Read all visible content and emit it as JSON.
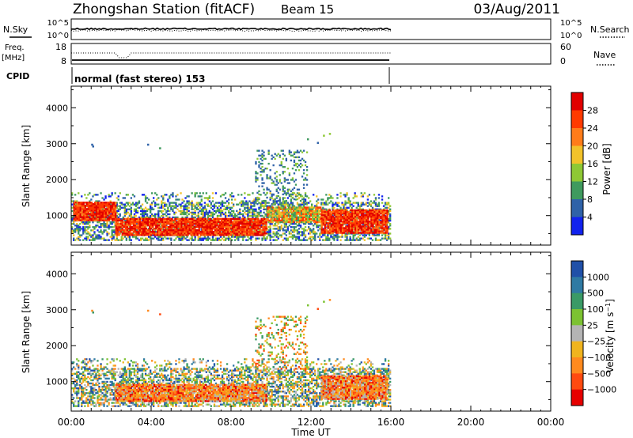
{
  "header": {
    "title": "Zhongshan Station (fitACF)",
    "beam": "Beam 15",
    "date": "03/Aug/2011"
  },
  "params": {
    "nsky_label": "N.Sky",
    "nsky_ticks": [
      "10^5",
      "10^0"
    ],
    "nsearch_label": "N.Search",
    "nsearch_ticks": [
      "10^5",
      "10^0"
    ],
    "freq_label": "Freq.",
    "freq_unit": "[MHz]",
    "freq_ticks": [
      "18",
      "8"
    ],
    "nave_label": "Nave",
    "nave_ticks": [
      "60",
      "0"
    ],
    "cpid_label": "CPID",
    "cpid_text": "normal (fast stereo) 153"
  },
  "chart_data": [
    {
      "type": "heatmap",
      "name": "power",
      "ylabel": "Slant Range [km]",
      "xlabel": "",
      "xlim": [
        0,
        24
      ],
      "ylim": [
        180,
        4600
      ],
      "yticks": [
        1000,
        2000,
        3000,
        4000
      ],
      "colorbar": {
        "label": "Power [dB]",
        "ticks": [
          "28",
          "24",
          "20",
          "16",
          "12",
          "8",
          "4"
        ],
        "colors": [
          "#e10000",
          "#ff3a00",
          "#ff7c1a",
          "#f2c22a",
          "#8ec835",
          "#3f9a5e",
          "#2f62a8",
          "#1122ee"
        ]
      },
      "regions": [
        {
          "t": [
            0.0,
            16.0
          ],
          "r": [
            300,
            1650
          ],
          "level": "weak"
        },
        {
          "t": [
            0.1,
            2.2
          ],
          "r": [
            850,
            1350
          ],
          "level": "strong"
        },
        {
          "t": [
            2.2,
            9.8
          ],
          "r": [
            440,
            900
          ],
          "level": "strong"
        },
        {
          "t": [
            9.8,
            12.5
          ],
          "r": [
            800,
            1250
          ],
          "level": "medium"
        },
        {
          "t": [
            12.5,
            15.8
          ],
          "r": [
            500,
            1150
          ],
          "level": "strong"
        },
        {
          "t": [
            9.2,
            11.8
          ],
          "r": [
            1300,
            2800
          ],
          "level": "sparse"
        }
      ]
    },
    {
      "type": "heatmap",
      "name": "velocity",
      "ylabel": "Slant Range [km]",
      "xlabel": "Time UT",
      "xlim": [
        0,
        24
      ],
      "xticks": [
        "00:00",
        "04:00",
        "08:00",
        "12:00",
        "16:00",
        "20:00",
        "00:00"
      ],
      "ylim": [
        180,
        4600
      ],
      "yticks": [
        1000,
        2000,
        3000,
        4000
      ],
      "colorbar": {
        "label": "Velocity [m s^-1]",
        "ticks": [
          "1000",
          "500",
          "100",
          "25",
          "−25",
          "−100",
          "−500",
          "−1000"
        ],
        "colors": [
          "#2050a8",
          "#2f7aa3",
          "#3a9a66",
          "#7cc232",
          "#b4b4b4",
          "#f0b41e",
          "#ff8a1e",
          "#ff4a10",
          "#e60000"
        ]
      },
      "regions": [
        {
          "t": [
            0.0,
            16.0
          ],
          "r": [
            300,
            1650
          ],
          "level": "mixed"
        },
        {
          "t": [
            2.2,
            9.8
          ],
          "r": [
            440,
            900
          ],
          "level": "negative"
        },
        {
          "t": [
            12.5,
            15.8
          ],
          "r": [
            500,
            1150
          ],
          "level": "negative"
        },
        {
          "t": [
            9.2,
            11.8
          ],
          "r": [
            1300,
            2800
          ],
          "level": "sparse"
        }
      ]
    }
  ]
}
